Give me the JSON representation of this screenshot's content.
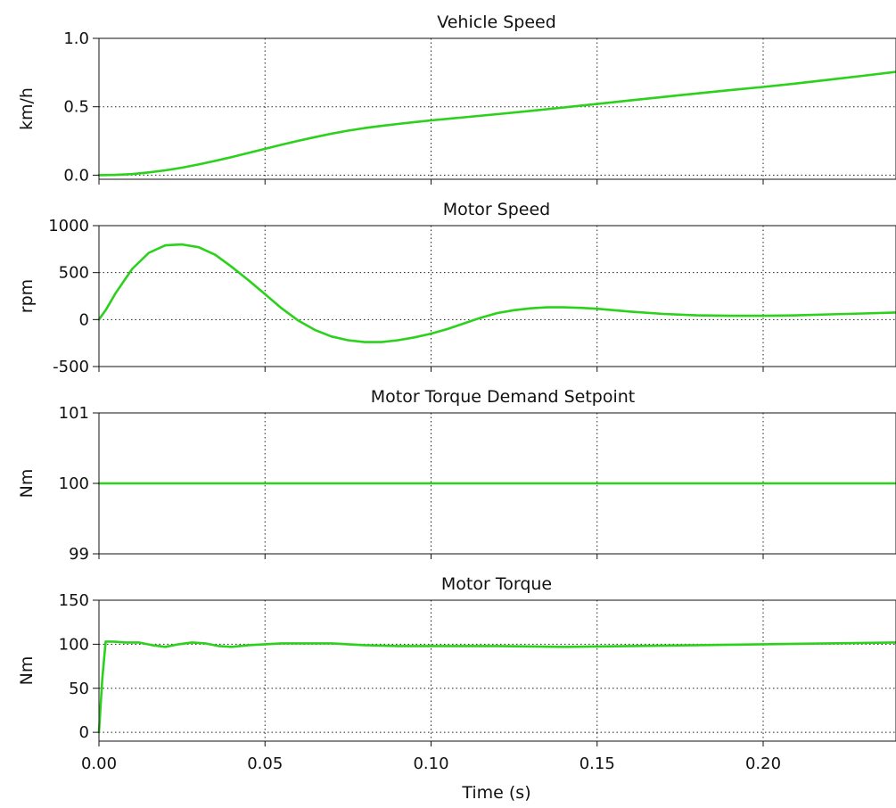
{
  "chart_data": [
    {
      "type": "line",
      "title": "Vehicle Speed",
      "xlabel": "",
      "ylabel": "km/h",
      "xlim": [
        0,
        0.24
      ],
      "ylim": [
        -0.03,
        1.0
      ],
      "yticks": [
        0.0,
        0.5,
        1.0
      ],
      "ytick_labels": [
        "0.0",
        "0.5",
        "1.0"
      ],
      "xticks": [
        0,
        0.05,
        0.1,
        0.15,
        0.2
      ],
      "grid": true,
      "series": [
        {
          "x": [
            0,
            0.005,
            0.01,
            0.015,
            0.02,
            0.025,
            0.03,
            0.035,
            0.04,
            0.045,
            0.05,
            0.055,
            0.06,
            0.065,
            0.07,
            0.075,
            0.08,
            0.085,
            0.09,
            0.095,
            0.1,
            0.11,
            0.12,
            0.13,
            0.14,
            0.15,
            0.16,
            0.17,
            0.18,
            0.19,
            0.2,
            0.21,
            0.22,
            0.23,
            0.24
          ],
          "y": [
            0,
            0.002,
            0.008,
            0.02,
            0.035,
            0.055,
            0.078,
            0.104,
            0.132,
            0.162,
            0.192,
            0.222,
            0.251,
            0.278,
            0.303,
            0.325,
            0.344,
            0.36,
            0.374,
            0.388,
            0.4,
            0.423,
            0.446,
            0.47,
            0.495,
            0.52,
            0.546,
            0.572,
            0.597,
            0.621,
            0.645,
            0.67,
            0.698,
            0.726,
            0.755
          ],
          "color": "#2bd11b"
        }
      ]
    },
    {
      "type": "line",
      "title": "Motor Speed",
      "xlabel": "",
      "ylabel": "rpm",
      "xlim": [
        0,
        0.24
      ],
      "ylim": [
        -500,
        1000
      ],
      "yticks": [
        -500,
        0,
        500,
        1000
      ],
      "ytick_labels": [
        "-500",
        "0",
        "500",
        "1000"
      ],
      "xticks": [
        0,
        0.05,
        0.1,
        0.15,
        0.2
      ],
      "grid": true,
      "series": [
        {
          "x": [
            0,
            0.002,
            0.005,
            0.01,
            0.015,
            0.02,
            0.025,
            0.03,
            0.035,
            0.04,
            0.045,
            0.05,
            0.055,
            0.06,
            0.065,
            0.07,
            0.075,
            0.08,
            0.085,
            0.09,
            0.095,
            0.1,
            0.105,
            0.11,
            0.115,
            0.12,
            0.125,
            0.13,
            0.135,
            0.14,
            0.145,
            0.15,
            0.155,
            0.16,
            0.17,
            0.18,
            0.19,
            0.2,
            0.21,
            0.22,
            0.23,
            0.24
          ],
          "y": [
            0,
            100,
            280,
            540,
            710,
            790,
            800,
            770,
            690,
            560,
            420,
            270,
            120,
            -10,
            -110,
            -180,
            -220,
            -240,
            -240,
            -220,
            -190,
            -150,
            -100,
            -40,
            20,
            70,
            100,
            120,
            130,
            130,
            125,
            115,
            100,
            85,
            60,
            45,
            40,
            40,
            45,
            55,
            65,
            75
          ],
          "color": "#2bd11b"
        }
      ]
    },
    {
      "type": "line",
      "title": "Motor Torque Demand Setpoint",
      "xlabel": "",
      "ylabel": "Nm",
      "xlim": [
        0,
        0.24
      ],
      "ylim": [
        99,
        101
      ],
      "yticks": [
        99,
        100,
        101
      ],
      "ytick_labels": [
        "99",
        "100",
        "101"
      ],
      "xticks": [
        0,
        0.05,
        0.1,
        0.15,
        0.2
      ],
      "grid": true,
      "series": [
        {
          "x": [
            0,
            0.24
          ],
          "y": [
            100,
            100
          ],
          "color": "#2bd11b"
        }
      ]
    },
    {
      "type": "line",
      "title": "Motor Torque",
      "xlabel": "Time (s)",
      "ylabel": "Nm",
      "xlim": [
        0,
        0.24
      ],
      "ylim": [
        -10,
        150
      ],
      "yticks": [
        0,
        50,
        100,
        150
      ],
      "ytick_labels": [
        "0",
        "50",
        "100",
        "150"
      ],
      "xticks": [
        0,
        0.05,
        0.1,
        0.15,
        0.2
      ],
      "xtick_labels": [
        "0.00",
        "0.05",
        "0.10",
        "0.15",
        "0.20"
      ],
      "grid": true,
      "series": [
        {
          "x": [
            0,
            0.001,
            0.002,
            0.004,
            0.008,
            0.012,
            0.016,
            0.02,
            0.024,
            0.028,
            0.032,
            0.036,
            0.04,
            0.045,
            0.05,
            0.055,
            0.06,
            0.07,
            0.08,
            0.09,
            0.1,
            0.12,
            0.14,
            0.16,
            0.18,
            0.2,
            0.22,
            0.24
          ],
          "y": [
            0,
            60,
            103,
            103,
            102,
            102,
            99,
            97,
            100,
            102,
            101,
            98,
            97,
            99,
            100,
            101,
            101,
            101,
            99,
            98,
            98,
            98,
            97,
            98,
            99,
            100,
            101,
            102
          ],
          "color": "#2bd11b"
        }
      ]
    }
  ]
}
